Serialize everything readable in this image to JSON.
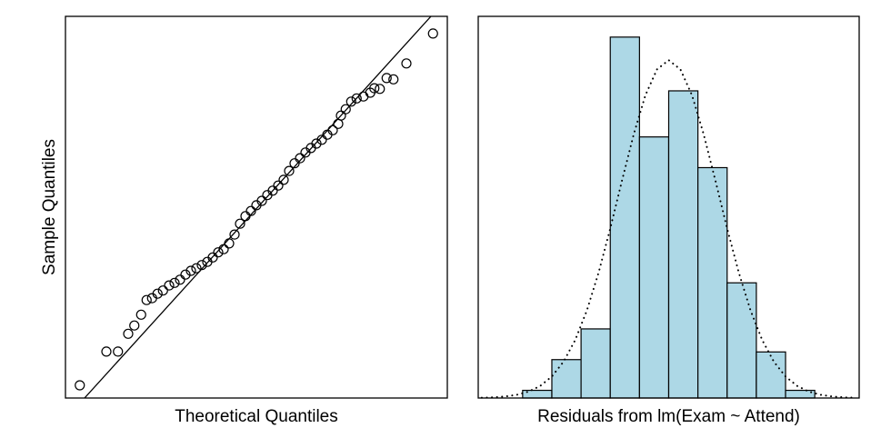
{
  "chart_data": [
    {
      "type": "scatter",
      "x_label": "Theoretical Quantiles",
      "y_label": "Sample Quantiles",
      "xlim": [
        -2.8,
        2.8
      ],
      "ylim": [
        -3,
        3
      ],
      "x": [
        -2.59,
        -2.2,
        -2.03,
        -1.88,
        -1.79,
        -1.69,
        -1.61,
        -1.53,
        -1.45,
        -1.37,
        -1.28,
        -1.2,
        -1.12,
        -1.04,
        -0.96,
        -0.88,
        -0.8,
        -0.72,
        -0.64,
        -0.56,
        -0.48,
        -0.4,
        -0.32,
        -0.24,
        -0.16,
        -0.08,
        0.0,
        0.08,
        0.16,
        0.24,
        0.32,
        0.4,
        0.48,
        0.56,
        0.64,
        0.72,
        0.8,
        0.88,
        0.96,
        1.04,
        1.12,
        1.2,
        1.24,
        1.31,
        1.39,
        1.47,
        1.57,
        1.67,
        1.73,
        1.81,
        1.91,
        2.01,
        2.2,
        2.59
      ],
      "y": [
        -2.8,
        -2.27,
        -2.27,
        -1.99,
        -1.86,
        -1.69,
        -1.46,
        -1.43,
        -1.36,
        -1.31,
        -1.23,
        -1.19,
        -1.14,
        -1.06,
        -1.0,
        -0.96,
        -0.91,
        -0.86,
        -0.79,
        -0.71,
        -0.66,
        -0.57,
        -0.43,
        -0.26,
        -0.14,
        -0.06,
        0.03,
        0.1,
        0.19,
        0.26,
        0.34,
        0.43,
        0.57,
        0.69,
        0.77,
        0.86,
        0.93,
        1.0,
        1.06,
        1.14,
        1.21,
        1.31,
        1.44,
        1.54,
        1.66,
        1.71,
        1.74,
        1.8,
        1.87,
        1.86,
        2.03,
        2.01,
        2.26,
        2.73
      ],
      "reference_line": {
        "x": [
          -2.52,
          2.56
        ],
        "y": [
          -3,
          3
        ]
      }
    },
    {
      "type": "histogram",
      "x_label": "Residuals from lm(Exam ~ Attend)",
      "color": "#add8e6",
      "xlim": [
        -32.6,
        32.6
      ],
      "ylim": [
        0,
        49.7
      ],
      "bins": [
        -25,
        -20,
        -15,
        -10,
        -5,
        0,
        5,
        10,
        15,
        20,
        25
      ],
      "counts": [
        1,
        5,
        9,
        47,
        34,
        40,
        30,
        15,
        6,
        1
      ],
      "density_curve": {
        "x": [
          -32,
          -30,
          -28,
          -26,
          -24,
          -22,
          -20,
          -18,
          -16,
          -14,
          -12,
          -10,
          -8,
          -6,
          -4,
          -2,
          0,
          2,
          4,
          6,
          8,
          10,
          12,
          14,
          16,
          18,
          20,
          22,
          24,
          26,
          28,
          30,
          32
        ],
        "y": [
          0.04,
          0.09,
          0.2,
          0.42,
          0.83,
          1.57,
          2.8,
          4.73,
          7.55,
          11.41,
          16.32,
          22.09,
          28.3,
          34.3,
          39.4,
          42.8,
          44,
          42.8,
          39.4,
          34.3,
          28.3,
          22.09,
          16.32,
          11.41,
          7.55,
          4.73,
          2.8,
          1.57,
          0.83,
          0.42,
          0.2,
          0.09,
          0.04
        ]
      }
    }
  ]
}
